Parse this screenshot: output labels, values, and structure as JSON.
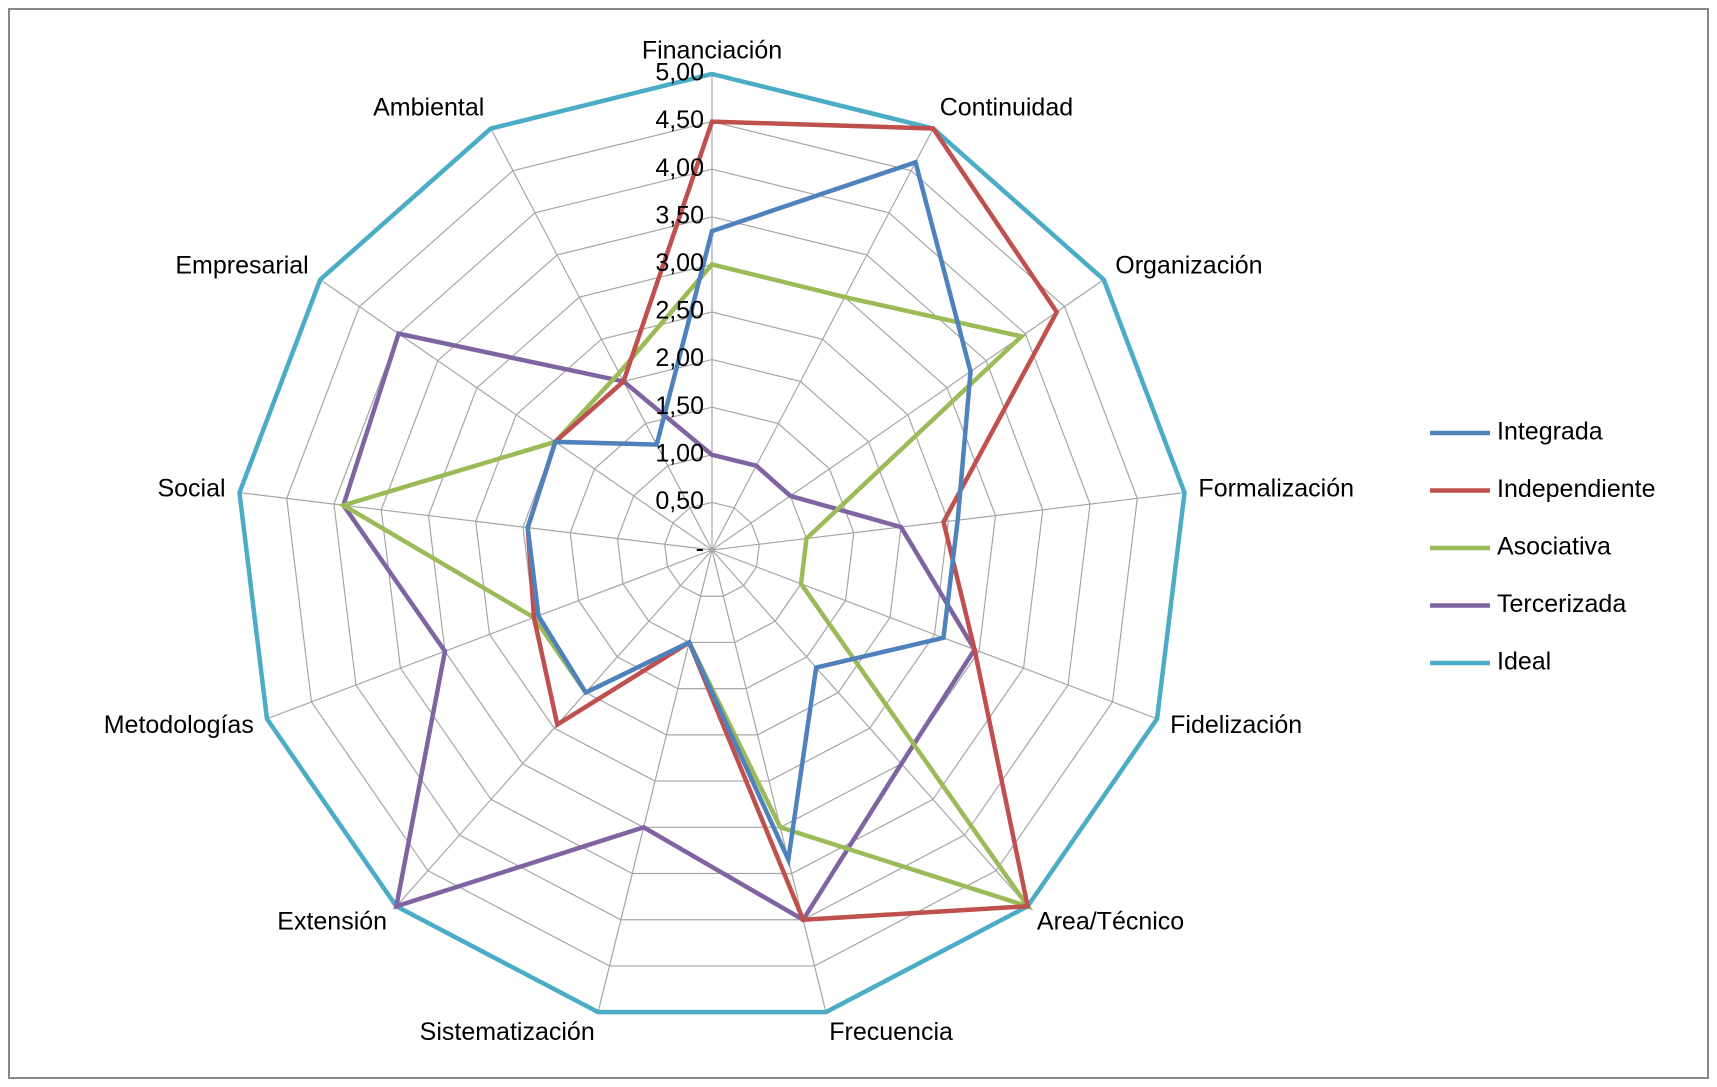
{
  "chart_data": {
    "type": "radar",
    "categories": [
      "Financiación",
      "Continuidad",
      "Organización",
      "Formalización",
      "Fidelización",
      "Area/Técnico",
      "Frecuencia",
      "Sistematización",
      "Extensión",
      "Metodologías",
      "Social",
      "Empresarial",
      "Ambiental"
    ],
    "series": [
      {
        "name": "Integrada",
        "color": "#4f81bd",
        "values": [
          3.35,
          4.6,
          3.3,
          2.6,
          2.6,
          1.65,
          3.35,
          1.0,
          2.0,
          1.95,
          1.95,
          2.0,
          1.25
        ]
      },
      {
        "name": "Independiente",
        "color": "#c0504d",
        "values": [
          4.5,
          5.0,
          4.4,
          2.45,
          2.95,
          5.0,
          4.0,
          1.0,
          2.45,
          2.0,
          1.95,
          2.0,
          2.0
        ]
      },
      {
        "name": "Asociativa",
        "color": "#9bbb59",
        "values": [
          3.0,
          3.0,
          3.95,
          1.0,
          1.0,
          5.0,
          3.0,
          1.0,
          2.0,
          2.0,
          3.9,
          2.0,
          2.1
        ]
      },
      {
        "name": "Tercerizada",
        "color": "#8064a2",
        "values": [
          1.0,
          1.0,
          1.0,
          2.0,
          2.95,
          3.0,
          4.0,
          3.0,
          5.0,
          3.0,
          3.9,
          4.0,
          2.0
        ]
      },
      {
        "name": "Ideal",
        "color": "#4bacc6",
        "values": [
          5,
          5,
          5,
          5,
          5,
          5,
          5,
          5,
          5,
          5,
          5,
          5,
          5
        ]
      }
    ],
    "rlim": [
      0,
      5
    ],
    "rticks": [
      {
        "value": 0,
        "label": "-"
      },
      {
        "value": 0.5,
        "label": "0,50"
      },
      {
        "value": 1,
        "label": "1,00"
      },
      {
        "value": 1.5,
        "label": "1,50"
      },
      {
        "value": 2,
        "label": "2,00"
      },
      {
        "value": 2.5,
        "label": "2,50"
      },
      {
        "value": 3,
        "label": "3,00"
      },
      {
        "value": 3.5,
        "label": "3,50"
      },
      {
        "value": 4,
        "label": "4,00"
      },
      {
        "value": 4.5,
        "label": "4,50"
      },
      {
        "value": 5,
        "label": "5,00"
      }
    ],
    "grid": true,
    "legend": "right"
  }
}
